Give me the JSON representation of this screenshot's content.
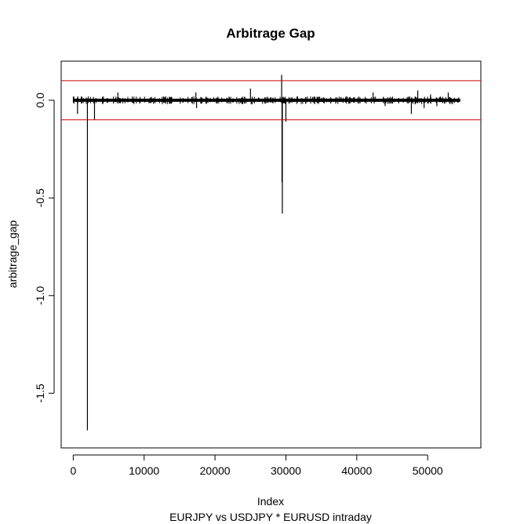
{
  "chart_data": {
    "type": "line",
    "title": "Arbitrage Gap",
    "xlabel": "Index",
    "ylabel": "arbitrage_gap",
    "subtitle": "EURJPY vs USDJPY * EURUSD intraday",
    "xlim": [
      -1700,
      57500
    ],
    "ylim": [
      -1.78,
      0.2
    ],
    "xticks": [
      0,
      10000,
      20000,
      30000,
      40000,
      50000
    ],
    "xtick_labels": [
      "0",
      "10000",
      "20000",
      "30000",
      "40000",
      "50000"
    ],
    "yticks": [
      0.0,
      -0.5,
      -1.0,
      -1.5
    ],
    "ytick_labels": [
      "0.0",
      "-0.5",
      "-1.0",
      "-1.5"
    ],
    "n_points": 54600,
    "baseline_band": [
      -0.008,
      0.008
    ],
    "thresholds": [
      0.1,
      -0.1
    ],
    "threshold_color": "#cc0000",
    "line_color": "#000000",
    "spikes": [
      {
        "x": 600,
        "y": -0.07
      },
      {
        "x": 2000,
        "y": -1.69
      },
      {
        "x": 3000,
        "y": -0.1
      },
      {
        "x": 6300,
        "y": 0.04
      },
      {
        "x": 17300,
        "y": 0.04
      },
      {
        "x": 17400,
        "y": -0.04
      },
      {
        "x": 25000,
        "y": 0.06
      },
      {
        "x": 25100,
        "y": -0.02
      },
      {
        "x": 29400,
        "y": 0.13
      },
      {
        "x": 29450,
        "y": -0.42
      },
      {
        "x": 29500,
        "y": -0.58
      },
      {
        "x": 30000,
        "y": -0.11
      },
      {
        "x": 42300,
        "y": 0.04
      },
      {
        "x": 44000,
        "y": -0.03
      },
      {
        "x": 47700,
        "y": -0.07
      },
      {
        "x": 48600,
        "y": 0.05
      },
      {
        "x": 49500,
        "y": -0.04
      },
      {
        "x": 50400,
        "y": 0.03
      },
      {
        "x": 51300,
        "y": -0.03
      },
      {
        "x": 52900,
        "y": 0.04
      },
      {
        "x": 53500,
        "y": -0.02
      }
    ]
  }
}
